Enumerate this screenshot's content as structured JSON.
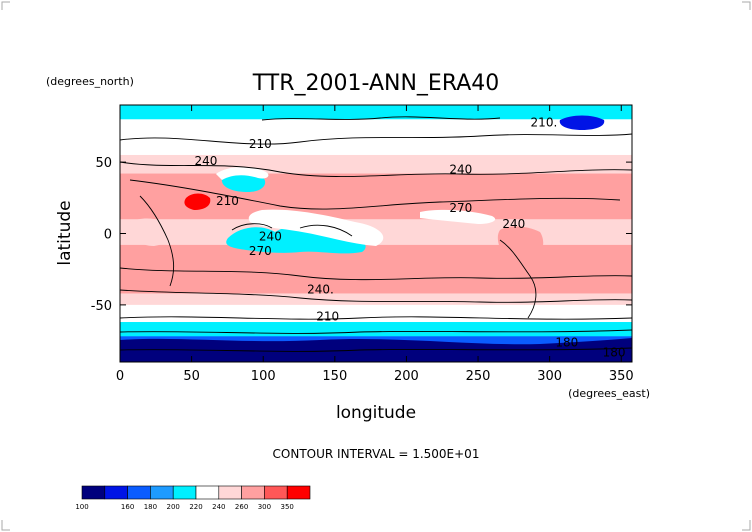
{
  "chart_data": {
    "type": "heatmap",
    "title": "TTR_2001-ANN_ERA40",
    "xlabel": "longitude",
    "ylabel": "latitude",
    "x_units": "(degrees_east)",
    "y_units": "(degrees_north)",
    "xlim": [
      0,
      357.5
    ],
    "ylim": [
      -90,
      90
    ],
    "x_ticks": [
      0,
      50,
      100,
      150,
      200,
      250,
      300,
      350
    ],
    "y_ticks": [
      50,
      0,
      -50
    ],
    "contour_interval_text": "CONTOUR INTERVAL = 1.500E+01",
    "contour_labels": [
      {
        "text": "210.",
        "lon": 296,
        "lat": 75
      },
      {
        "text": "210",
        "lon": 98,
        "lat": 60
      },
      {
        "text": "240",
        "lon": 60,
        "lat": 48
      },
      {
        "text": "240",
        "lon": 238,
        "lat": 42
      },
      {
        "text": "270",
        "lon": 238,
        "lat": 15
      },
      {
        "text": "210",
        "lon": 75,
        "lat": 20
      },
      {
        "text": "240",
        "lon": 275,
        "lat": 4
      },
      {
        "text": "240",
        "lon": 105,
        "lat": -5
      },
      {
        "text": "270",
        "lon": 98,
        "lat": -15
      },
      {
        "text": "240.",
        "lon": 140,
        "lat": -42
      },
      {
        "text": "210",
        "lon": 145,
        "lat": -61
      },
      {
        "text": "180",
        "lon": 312,
        "lat": -79
      },
      {
        "text": "180",
        "lon": 345,
        "lat": -86
      }
    ],
    "colorbar": {
      "levels": [
        100,
        160,
        180,
        200,
        220,
        240,
        260,
        300,
        350
      ],
      "colors": [
        "#00007d",
        "#0014e6",
        "#0a5cff",
        "#1e9bff",
        "#00f0ff",
        "#ffffff",
        "#ffd7d7",
        "#ffa0a0",
        "#ff5757",
        "#ff0000"
      ]
    },
    "zonal_mean_bands": [
      {
        "lat": [
          80,
          90
        ],
        "level": 200
      },
      {
        "lat": [
          68,
          80
        ],
        "level": 220
      },
      {
        "lat": [
          55,
          68
        ],
        "level": 220
      },
      {
        "lat": [
          42,
          55
        ],
        "level": 240
      },
      {
        "lat": [
          35,
          42
        ],
        "level": 260
      },
      {
        "lat": [
          10,
          35
        ],
        "level": 260
      },
      {
        "lat": [
          -8,
          10
        ],
        "level": 240
      },
      {
        "lat": [
          -35,
          -8
        ],
        "level": 260
      },
      {
        "lat": [
          -42,
          -35
        ],
        "level": 260
      },
      {
        "lat": [
          -50,
          -42
        ],
        "level": 240
      },
      {
        "lat": [
          -55,
          -50
        ],
        "level": 220
      },
      {
        "lat": [
          -62,
          -55
        ],
        "level": 220
      },
      {
        "lat": [
          -72,
          -62
        ],
        "level": 200
      },
      {
        "lat": [
          -90,
          -72
        ],
        "level": 160
      }
    ]
  }
}
